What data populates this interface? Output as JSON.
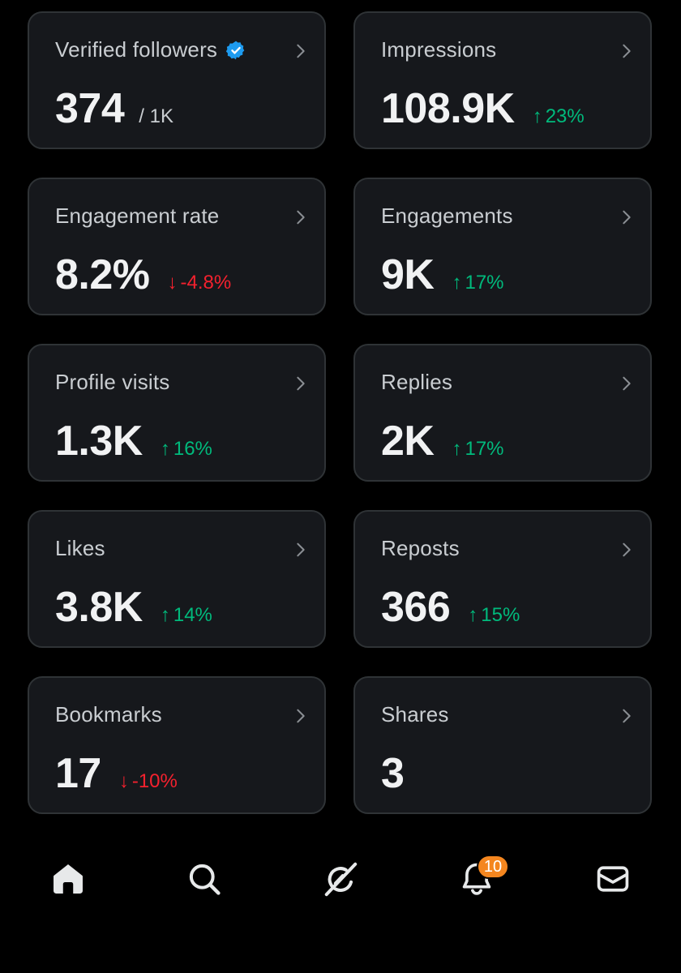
{
  "metrics": [
    {
      "label": "Verified followers",
      "value": "374",
      "suffix": "/ 1K",
      "verified": true
    },
    {
      "label": "Impressions",
      "value": "108.9K",
      "delta": "23%",
      "direction": "up"
    },
    {
      "label": "Engagement rate",
      "value": "8.2%",
      "delta": "-4.8%",
      "direction": "down"
    },
    {
      "label": "Engagements",
      "value": "9K",
      "delta": "17%",
      "direction": "up"
    },
    {
      "label": "Profile visits",
      "value": "1.3K",
      "delta": "16%",
      "direction": "up"
    },
    {
      "label": "Replies",
      "value": "2K",
      "delta": "17%",
      "direction": "up"
    },
    {
      "label": "Likes",
      "value": "3.8K",
      "delta": "14%",
      "direction": "up"
    },
    {
      "label": "Reposts",
      "value": "366",
      "delta": "15%",
      "direction": "up"
    },
    {
      "label": "Bookmarks",
      "value": "17",
      "delta": "-10%",
      "direction": "down"
    },
    {
      "label": "Shares",
      "value": "3"
    }
  ],
  "nav": {
    "home_icon": "home-icon",
    "search_icon": "search-icon",
    "grok_icon": "grok-icon",
    "notifications_icon": "bell-icon",
    "notifications_badge": "10",
    "messages_icon": "mail-icon"
  },
  "colors": {
    "up": "#00ba7c",
    "down": "#f4212e",
    "card_bg": "#16181c",
    "verified": "#1d9bf0",
    "badge": "#f4861f"
  },
  "arrows": {
    "up": "↑",
    "down": "↓"
  }
}
